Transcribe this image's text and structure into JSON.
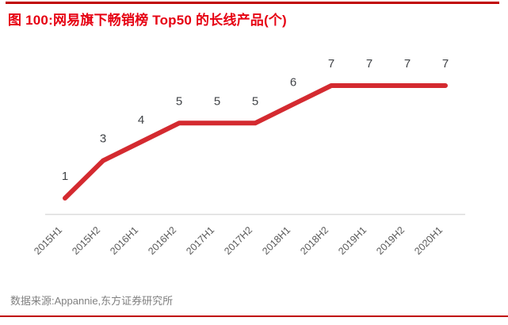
{
  "figure": {
    "title": "图 100:网易旗下畅销榜 Top50 的长线产品(个)",
    "source_note": "数据来源:Appannie,东方证券研究所"
  },
  "colors": {
    "title_red": "#e60012",
    "rule_red": "#c00000",
    "line_red": "#d42a30",
    "data_label_gray": "#404347",
    "axis_line_gray": "#dcdcdc",
    "tick_label_gray": "#595959",
    "source_gray": "#808080"
  },
  "chart_data": {
    "type": "line",
    "title": "网易旗下畅销榜 Top50 的长线产品(个)",
    "categories": [
      "2015H1",
      "2015H2",
      "2016H1",
      "2016H2",
      "2017H1",
      "2017H2",
      "2018H1",
      "2018H2",
      "2019H1",
      "2019H2",
      "2020H1"
    ],
    "values": [
      1,
      3,
      4,
      5,
      5,
      5,
      6,
      7,
      7,
      7,
      7
    ],
    "xlabel": "",
    "ylabel": "",
    "ylim": [
      0,
      8
    ],
    "grid": false,
    "legend": "none",
    "data_labels": true,
    "x_tick_rotation": -45
  }
}
